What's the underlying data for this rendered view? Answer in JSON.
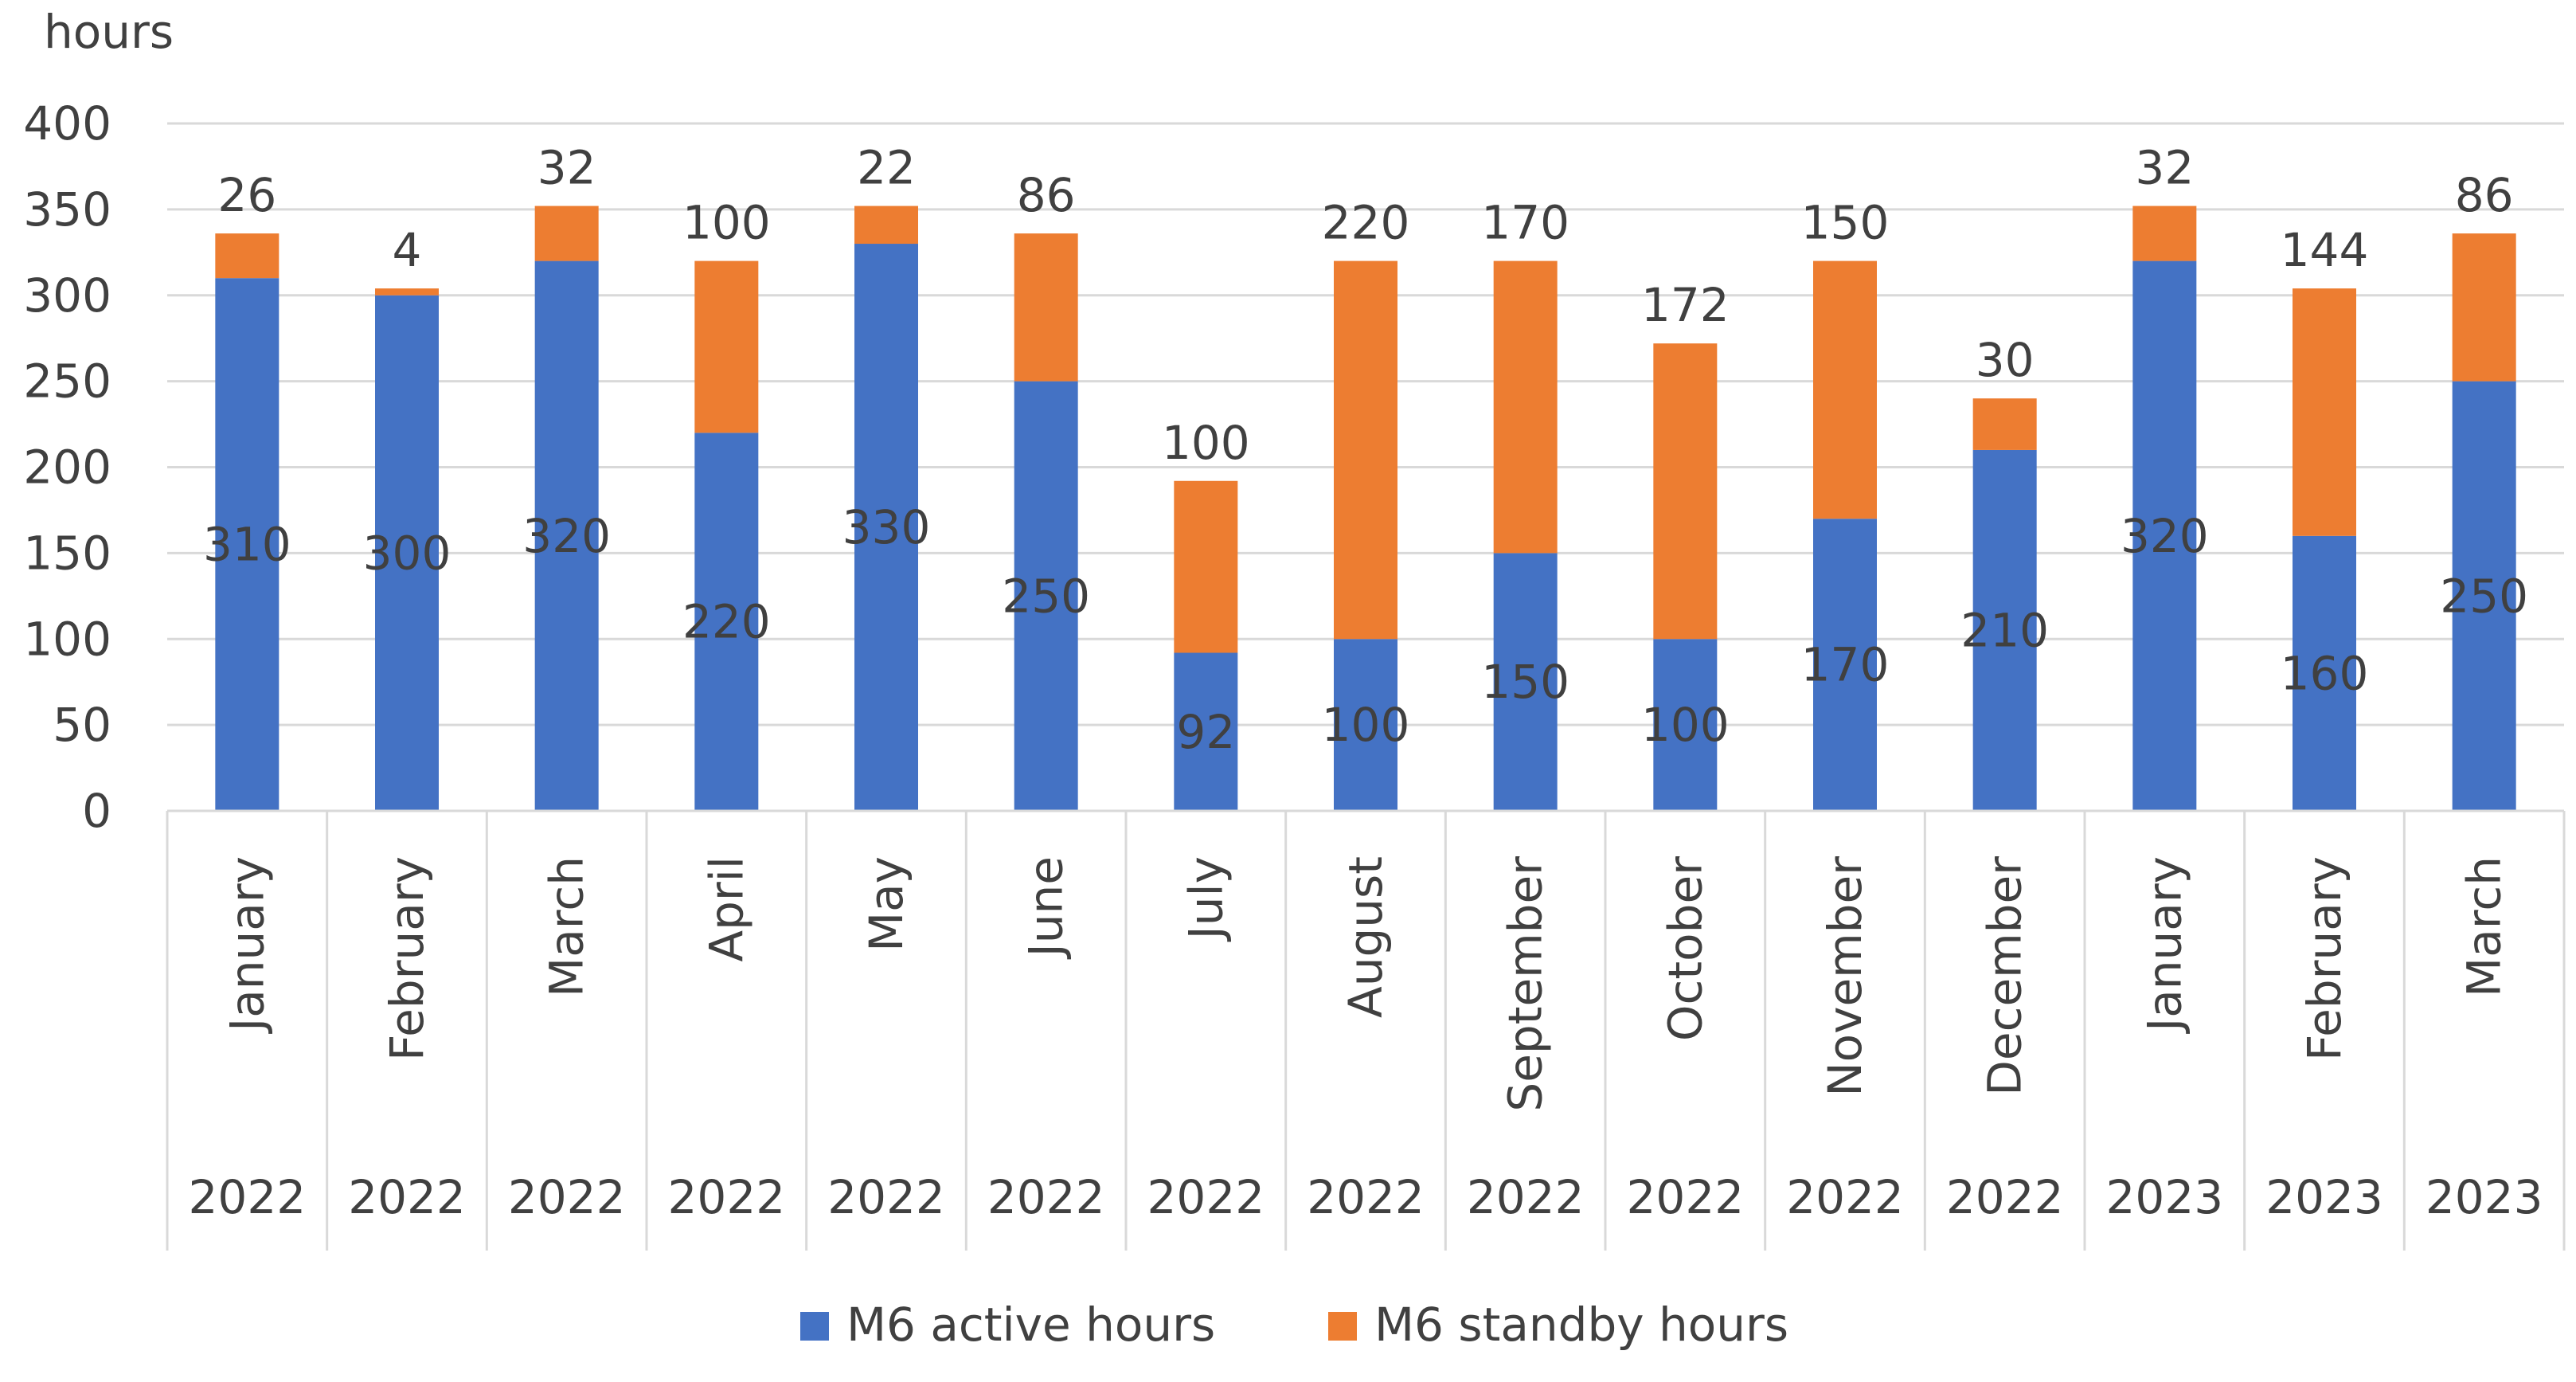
{
  "chart_data": {
    "type": "bar",
    "stacked": true,
    "title": "",
    "ylabel": "hours",
    "xlabel": "",
    "ylim": [
      0,
      400
    ],
    "ytick_step": 50,
    "yticks": [
      "0",
      "50",
      "100",
      "150",
      "200",
      "250",
      "300",
      "350",
      "400"
    ],
    "grid": true,
    "legend_position": "bottom",
    "categories": [
      {
        "month": "January",
        "year": "2022"
      },
      {
        "month": "February",
        "year": "2022"
      },
      {
        "month": "March",
        "year": "2022"
      },
      {
        "month": "April",
        "year": "2022"
      },
      {
        "month": "May",
        "year": "2022"
      },
      {
        "month": "June",
        "year": "2022"
      },
      {
        "month": "July",
        "year": "2022"
      },
      {
        "month": "August",
        "year": "2022"
      },
      {
        "month": "September",
        "year": "2022"
      },
      {
        "month": "October",
        "year": "2022"
      },
      {
        "month": "November",
        "year": "2022"
      },
      {
        "month": "December",
        "year": "2022"
      },
      {
        "month": "January",
        "year": "2023"
      },
      {
        "month": "February",
        "year": "2023"
      },
      {
        "month": "March",
        "year": "2023"
      }
    ],
    "series": [
      {
        "name": "M6 active hours",
        "color": "#4472C4",
        "values": [
          310,
          300,
          320,
          220,
          330,
          250,
          92,
          100,
          150,
          100,
          170,
          210,
          320,
          160,
          250
        ]
      },
      {
        "name": "M6 standby hours",
        "color": "#ED7D31",
        "values": [
          26,
          4,
          32,
          100,
          22,
          86,
          100,
          220,
          170,
          172,
          150,
          30,
          32,
          144,
          86
        ]
      }
    ]
  }
}
